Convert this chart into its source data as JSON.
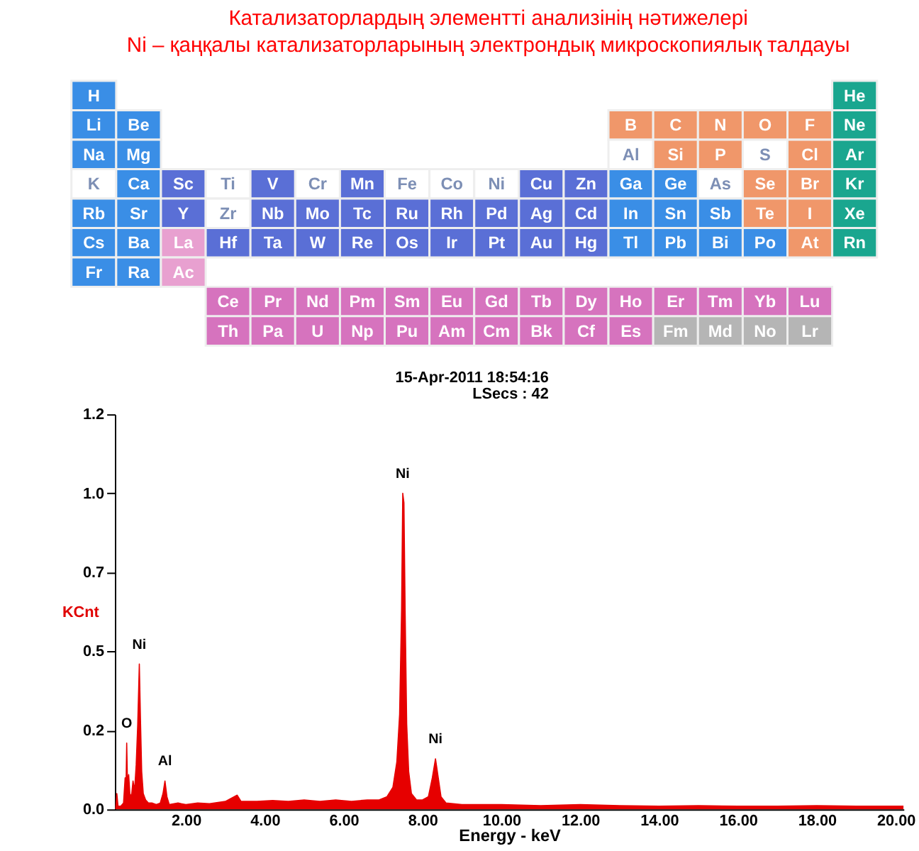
{
  "chart_data": [
    {
      "type": "other",
      "title": "Катализаторлардың элементті анализінің нәтижелері",
      "subtitle": "Ni – қаңқалы катализаторларының электрондық микроскопиялық талдауы",
      "categories": [
        "H",
        "He",
        "Li",
        "Be",
        "B",
        "C",
        "N",
        "O",
        "F",
        "Ne",
        "Na",
        "Mg",
        "Al",
        "Si",
        "P",
        "S",
        "Cl",
        "Ar",
        "K",
        "Ca",
        "Sc",
        "Ti",
        "V",
        "Cr",
        "Mn",
        "Fe",
        "Co",
        "Ni",
        "Cu",
        "Zn",
        "Ga",
        "Ge",
        "As",
        "Se",
        "Br",
        "Kr",
        "Rb",
        "Sr",
        "Y",
        "Zr",
        "Nb",
        "Mo",
        "Tc",
        "Ru",
        "Rh",
        "Pd",
        "Ag",
        "Cd",
        "In",
        "Sn",
        "Sb",
        "Te",
        "I",
        "Xe",
        "Cs",
        "Ba",
        "La",
        "Ce",
        "Pr",
        "Nd",
        "Pm",
        "Sm",
        "Eu",
        "Gd",
        "Tb",
        "Dy",
        "Ho",
        "Er",
        "Tm",
        "Yb",
        "Lu",
        "Hf",
        "Ta",
        "W",
        "Re",
        "Os",
        "Ir",
        "Pt",
        "Au",
        "Hg",
        "Tl",
        "Pb",
        "Bi",
        "Po",
        "At",
        "Rn",
        "Fr",
        "Ra",
        "Ac",
        "Th",
        "Pa",
        "U",
        "Np",
        "Pu",
        "Am",
        "Cm",
        "Bk",
        "Cf",
        "Es",
        "Fm",
        "Md",
        "No",
        "Lr"
      ],
      "colors": [
        "#3a8ee6",
        "#1aa68f",
        "#3a8ee6",
        "#3a8ee6",
        "#f0976a",
        "#f0976a",
        "#f0976a",
        "#f0976a",
        "#f0976a",
        "#1aa68f",
        "#3a8ee6",
        "#3a8ee6",
        "#ffffff",
        "#f0976a",
        "#f0976a",
        "#ffffff",
        "#f0976a",
        "#1aa68f",
        "#ffffff",
        "#3a8ee6",
        "#5a6fd6",
        "#ffffff",
        "#5a6fd6",
        "#ffffff",
        "#5a6fd6",
        "#ffffff",
        "#ffffff",
        "#ffffff",
        "#5a6fd6",
        "#5a6fd6",
        "#3a8ee6",
        "#3a8ee6",
        "#ffffff",
        "#f0976a",
        "#f0976a",
        "#1aa68f",
        "#3a8ee6",
        "#3a8ee6",
        "#5a6fd6",
        "#ffffff",
        "#5a6fd6",
        "#5a6fd6",
        "#5a6fd6",
        "#5a6fd6",
        "#5a6fd6",
        "#5a6fd6",
        "#5a6fd6",
        "#5a6fd6",
        "#3a8ee6",
        "#3a8ee6",
        "#3a8ee6",
        "#f0976a",
        "#f0976a",
        "#1aa68f",
        "#3a8ee6",
        "#3a8ee6",
        "#e8a0d0",
        "#d673be",
        "#d673be",
        "#d673be",
        "#d673be",
        "#d673be",
        "#d673be",
        "#d673be",
        "#d673be",
        "#d673be",
        "#d673be",
        "#d673be",
        "#d673be",
        "#d673be",
        "#d673be",
        "#5a6fd6",
        "#5a6fd6",
        "#5a6fd6",
        "#5a6fd6",
        "#5a6fd6",
        "#5a6fd6",
        "#5a6fd6",
        "#5a6fd6",
        "#5a6fd6",
        "#3a8ee6",
        "#3a8ee6",
        "#3a8ee6",
        "#3a8ee6",
        "#f0976a",
        "#1aa68f",
        "#3a8ee6",
        "#3a8ee6",
        "#e8a0d0",
        "#d673be",
        "#d673be",
        "#d673be",
        "#d673be",
        "#d673be",
        "#d673be",
        "#d673be",
        "#d673be",
        "#d673be",
        "#d673be",
        "#b5b5b5",
        "#b5b5b5",
        "#b5b5b5",
        "#b5b5b5"
      ]
    },
    {
      "type": "area",
      "xlabel": "Energy - keV",
      "ylabel": "KCnt",
      "xlim": [
        0.2,
        20.2
      ],
      "ylim": [
        0,
        1.25
      ],
      "xticks": [
        {
          "value": 2,
          "label": "2.00"
        },
        {
          "value": 4,
          "label": "4.00"
        },
        {
          "value": 6,
          "label": "6.00"
        },
        {
          "value": 8,
          "label": "8.00"
        },
        {
          "value": 10,
          "label": "10.00"
        },
        {
          "value": 12,
          "label": "12.00"
        },
        {
          "value": 14,
          "label": "14.00"
        },
        {
          "value": 16,
          "label": "16.00"
        },
        {
          "value": 18,
          "label": "18.00"
        },
        {
          "value": 20,
          "label": "20.00"
        }
      ],
      "yticks": [
        {
          "value": 0,
          "label": "0.0"
        },
        {
          "value": 0.25,
          "label": "0.2"
        },
        {
          "value": 0.5,
          "label": "0.5"
        },
        {
          "value": 0.75,
          "label": "0.7"
        },
        {
          "value": 1.0,
          "label": "1.0"
        },
        {
          "value": 1.25,
          "label": "1.2"
        }
      ],
      "grid": false,
      "x": [
        0.22,
        0.25,
        0.28,
        0.35,
        0.42,
        0.46,
        0.48,
        0.5,
        0.52,
        0.55,
        0.58,
        0.62,
        0.66,
        0.7,
        0.74,
        0.78,
        0.82,
        0.85,
        0.88,
        0.92,
        0.98,
        1.05,
        1.15,
        1.25,
        1.35,
        1.42,
        1.47,
        1.52,
        1.58,
        1.8,
        2.0,
        2.3,
        2.6,
        3.0,
        3.3,
        3.4,
        3.8,
        4.2,
        4.6,
        5.0,
        5.4,
        5.8,
        6.2,
        6.6,
        6.9,
        7.1,
        7.25,
        7.35,
        7.42,
        7.47,
        7.5,
        7.53,
        7.56,
        7.6,
        7.65,
        7.72,
        7.85,
        8.0,
        8.15,
        8.25,
        8.33,
        8.4,
        8.47,
        8.6,
        9.0,
        9.5,
        10,
        11,
        12,
        13,
        14,
        15,
        16,
        17,
        18,
        19,
        20,
        20.2
      ],
      "series": [
        {
          "color": "#e60000",
          "values": [
            0.0,
            0.05,
            0.01,
            0.01,
            0.02,
            0.1,
            0.05,
            0.21,
            0.08,
            0.11,
            0.05,
            0.04,
            0.09,
            0.06,
            0.14,
            0.27,
            0.46,
            0.28,
            0.12,
            0.05,
            0.03,
            0.02,
            0.02,
            0.015,
            0.02,
            0.05,
            0.09,
            0.04,
            0.015,
            0.02,
            0.015,
            0.02,
            0.018,
            0.025,
            0.045,
            0.025,
            0.025,
            0.028,
            0.025,
            0.03,
            0.025,
            0.03,
            0.025,
            0.03,
            0.03,
            0.04,
            0.07,
            0.15,
            0.3,
            0.63,
            1.0,
            0.97,
            0.63,
            0.27,
            0.12,
            0.05,
            0.03,
            0.03,
            0.04,
            0.1,
            0.16,
            0.1,
            0.04,
            0.02,
            0.015,
            0.015,
            0.015,
            0.012,
            0.015,
            0.012,
            0.01,
            0.012,
            0.01,
            0.01,
            0.012,
            0.01,
            0.01,
            0.01
          ]
        }
      ],
      "annotations": [
        "15-Apr-2011 18:54:16",
        "LSecs : 42",
        {
          "text": "O",
          "x": 0.5,
          "y": 0.21
        },
        {
          "text": "Ni",
          "x": 0.82,
          "y": 0.46
        },
        {
          "text": "Al",
          "x": 1.47,
          "y": 0.09
        },
        {
          "text": "Ni",
          "x": 7.5,
          "y": 1.0
        },
        {
          "text": "Ni",
          "x": 8.33,
          "y": 0.16
        }
      ]
    }
  ]
}
